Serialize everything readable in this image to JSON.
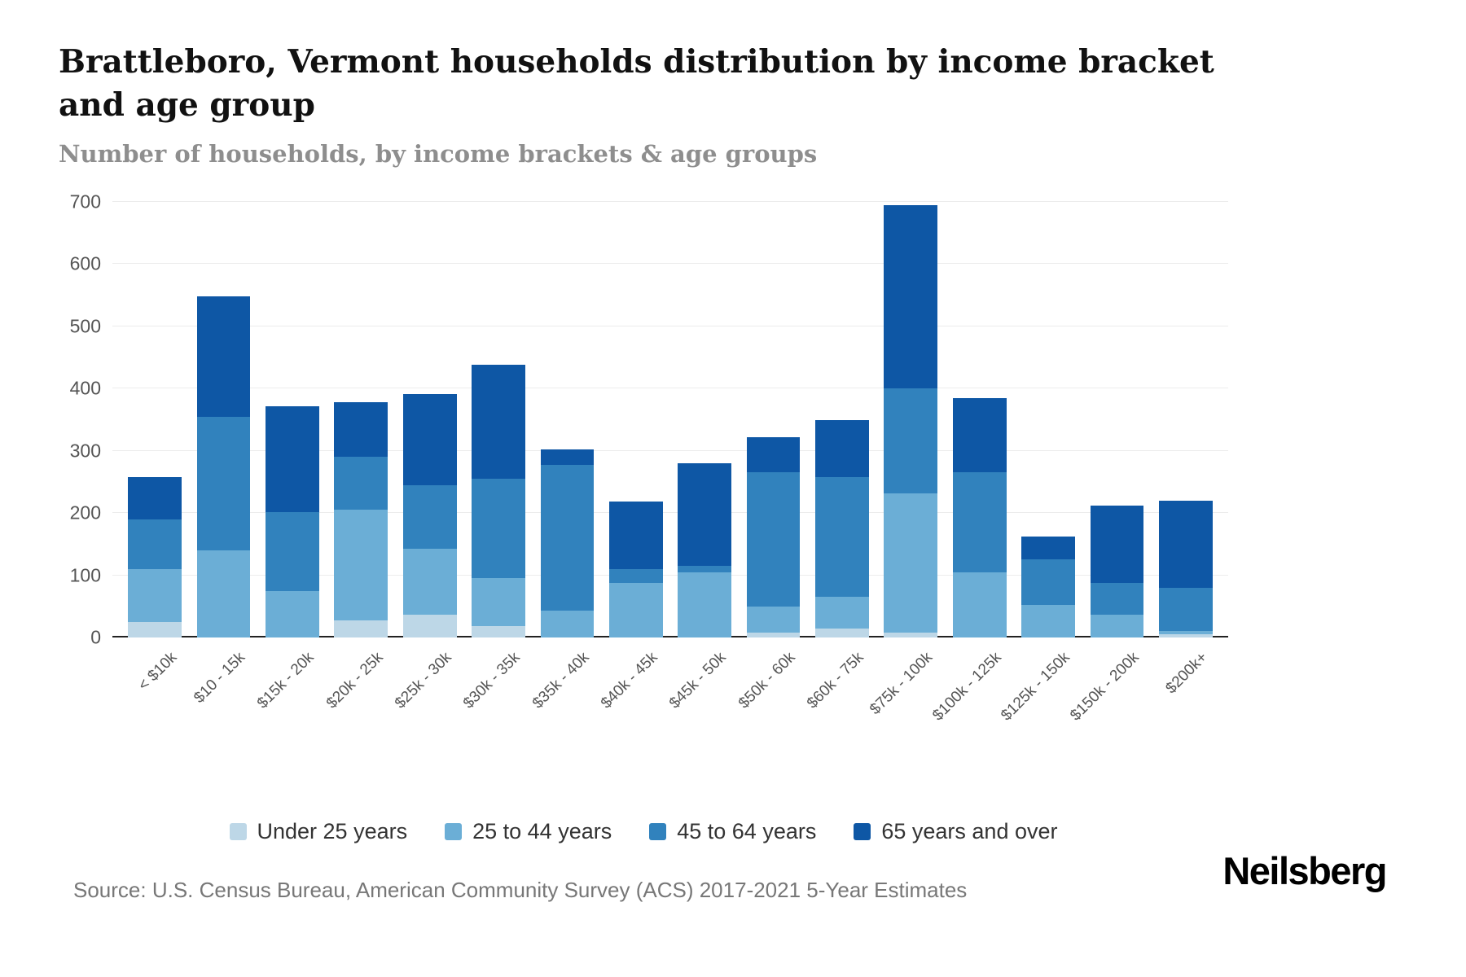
{
  "header": {
    "title": "Brattleboro, Vermont households distribution by income bracket and age group",
    "subtitle": "Number of households, by income brackets & age groups"
  },
  "footer": {
    "source": "Source: U.S. Census Bureau, American Community Survey (ACS) 2017-2021 5-Year Estimates",
    "brand": "Neilsberg"
  },
  "chart_data": {
    "type": "bar",
    "stacked": true,
    "title": "Brattleboro, Vermont households distribution by income bracket and age group",
    "subtitle": "Number of households, by income brackets & age groups",
    "xlabel": "",
    "ylabel": "Number of households",
    "ylim": [
      0,
      700
    ],
    "yticks": [
      0,
      100,
      200,
      300,
      400,
      500,
      600,
      700
    ],
    "grid": true,
    "legend_position": "bottom",
    "categories": [
      "< $10k",
      "$10 - 15k",
      "$15k - 20k",
      "$20k - 25k",
      "$25k - 30k",
      "$30k - 35k",
      "$35k - 40k",
      "$40k - 45k",
      "$45k - 50k",
      "$50k - 60k",
      "$60k - 75k",
      "$75k - 100k",
      "$100k - 125k",
      "$125k - 150k",
      "$150k - 200k",
      "$200k+"
    ],
    "series": [
      {
        "name": "Under 25 years",
        "color": "#bdd7e7",
        "values": [
          25,
          0,
          0,
          28,
          37,
          18,
          0,
          0,
          0,
          8,
          15,
          8,
          0,
          0,
          0,
          5
        ]
      },
      {
        "name": "25 to 44 years",
        "color": "#6baed6",
        "values": [
          85,
          140,
          75,
          177,
          105,
          77,
          43,
          88,
          105,
          42,
          50,
          224,
          105,
          52,
          37,
          5
        ]
      },
      {
        "name": "45 to 64 years",
        "color": "#3182bd",
        "values": [
          80,
          215,
          127,
          85,
          103,
          160,
          235,
          22,
          10,
          215,
          193,
          168,
          160,
          73,
          51,
          70
        ]
      },
      {
        "name": "65 years and over",
        "color": "#0e57a5",
        "values": [
          68,
          193,
          169,
          88,
          146,
          183,
          24,
          108,
          165,
          57,
          92,
          295,
          120,
          37,
          124,
          140
        ]
      }
    ],
    "colors": {
      "grid": "#ececec",
      "axis": "#222222",
      "tick_text": "#555555"
    }
  }
}
